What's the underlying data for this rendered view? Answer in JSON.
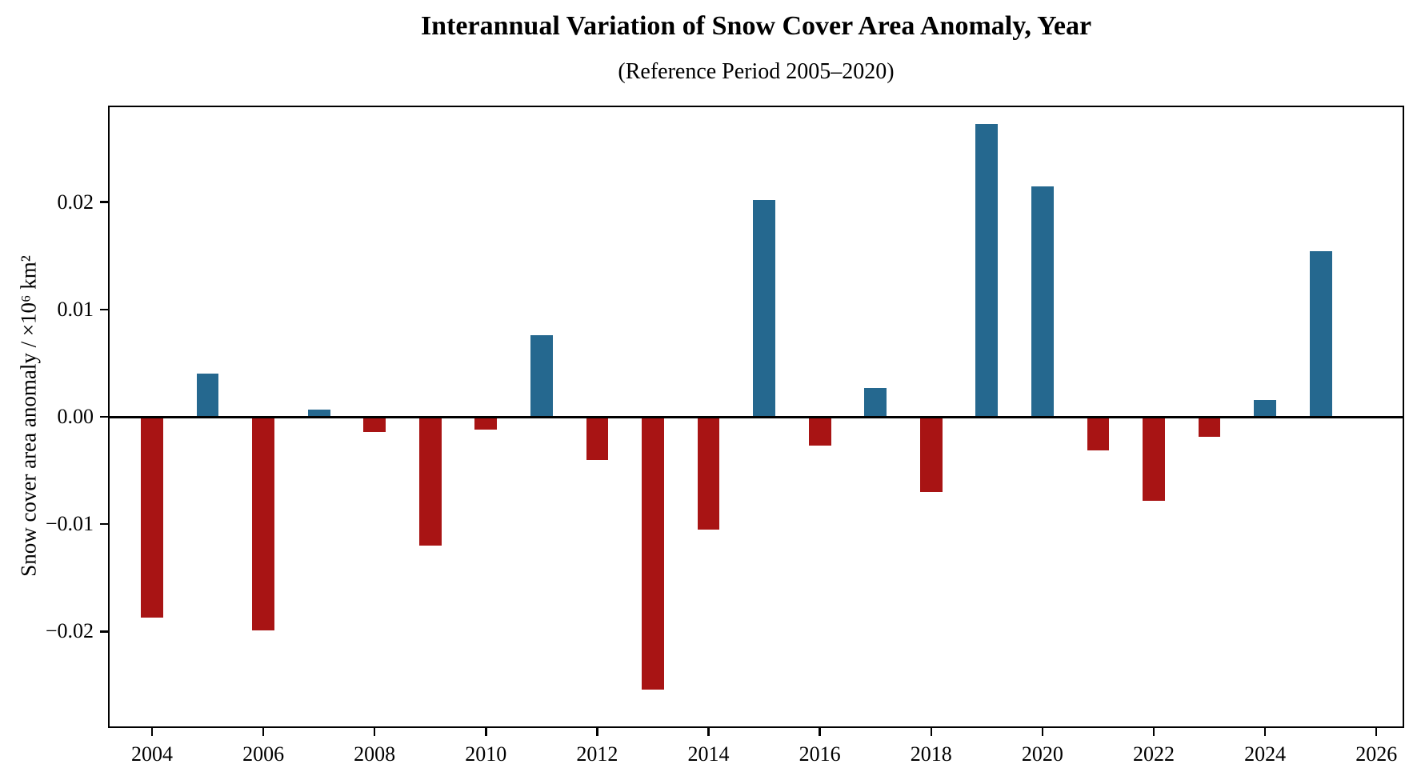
{
  "chart_data": {
    "type": "bar",
    "title": "Interannual Variation of Snow Cover Area Anomaly, Year",
    "subtitle": "(Reference Period 2005–2020)",
    "ylabel": "Snow cover area anomaly / ×10⁶ km²",
    "xlabel": "",
    "categories": [
      2004,
      2005,
      2006,
      2007,
      2008,
      2009,
      2010,
      2011,
      2012,
      2013,
      2014,
      2015,
      2016,
      2017,
      2018,
      2019,
      2020,
      2021,
      2022,
      2023,
      2024,
      2025
    ],
    "values": [
      -0.0187,
      0.004,
      -0.0199,
      0.0007,
      -0.0014,
      -0.012,
      -0.0012,
      0.0076,
      -0.004,
      -0.0254,
      -0.0105,
      0.0202,
      -0.0027,
      0.0027,
      -0.007,
      0.0273,
      0.0215,
      -0.0031,
      -0.0078,
      -0.0019,
      0.0016,
      0.0154
    ],
    "series_note": "positive anomalies blue, negative anomalies red",
    "xlim": [
      2003.21,
      2026.5
    ],
    "ylim": [
      -0.029,
      0.029
    ],
    "xticks": [
      2004,
      2006,
      2008,
      2010,
      2012,
      2014,
      2016,
      2018,
      2020,
      2022,
      2024,
      2026
    ],
    "xtick_labels": [
      "2004",
      "2006",
      "2008",
      "2010",
      "2012",
      "2014",
      "2016",
      "2018",
      "2020",
      "2022",
      "2024",
      "2026"
    ],
    "yticks": [
      0.02,
      0.01,
      0.0,
      -0.01,
      -0.02
    ],
    "ytick_labels": [
      "0.02",
      "0.01",
      "0.00",
      "−0.01",
      "−0.02"
    ],
    "bar_width_years": 0.4,
    "grid": false,
    "zero_line": true,
    "legend": null,
    "colors": {
      "positive": "#25688f",
      "negative": "#a81414",
      "axis": "#000000",
      "background": "#ffffff"
    }
  }
}
